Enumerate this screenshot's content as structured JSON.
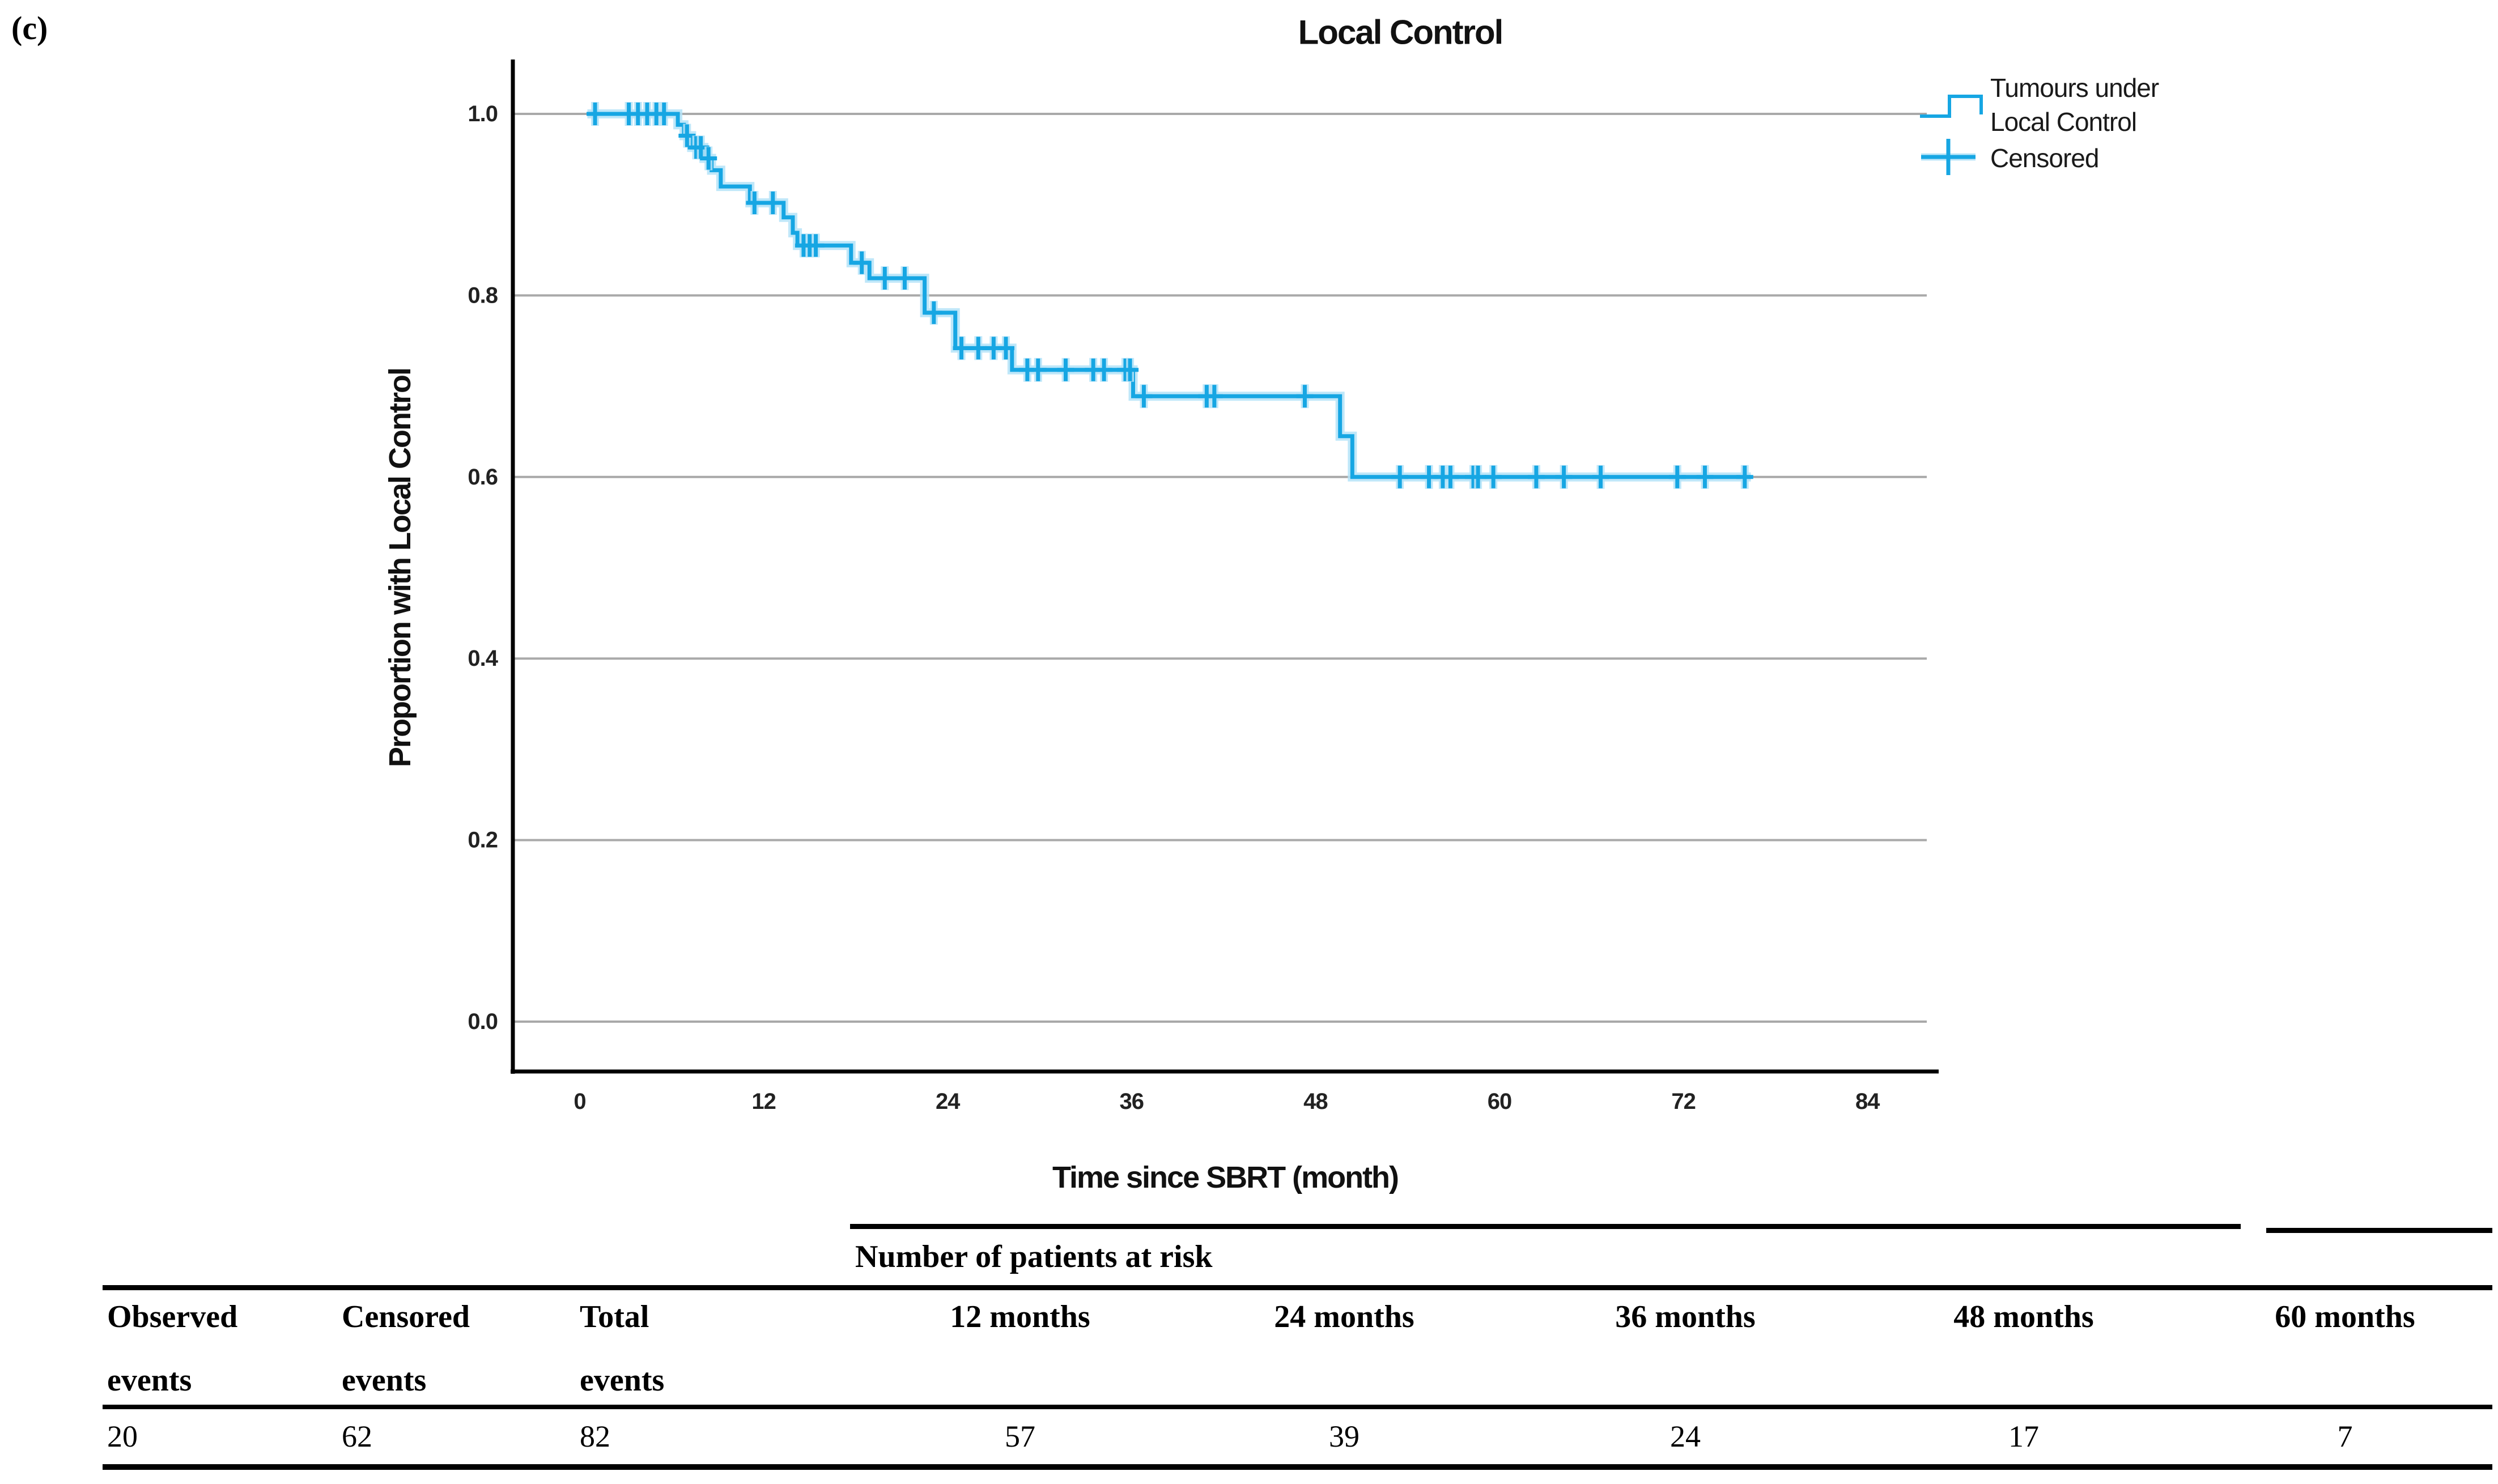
{
  "figure_label": "(c)",
  "chart": {
    "title": "Local Control",
    "x_label": "Time since SBRT (month)",
    "y_label": "Proportion with Local Control",
    "legend": {
      "series_line1": "Tumours under",
      "series_line2": "Local Control",
      "censored": "Censored"
    },
    "colors": {
      "curve": "#16A6E3",
      "curve_halo": "#B4E3F8",
      "grid": "#A9A9A9",
      "axis": "#000000"
    }
  },
  "chart_data": {
    "type": "line",
    "subtype": "kaplan-meier-step",
    "title": "Local Control",
    "xlabel": "Time since SBRT (month)",
    "ylabel": "Proportion with Local Control",
    "xlim": [
      0,
      88
    ],
    "ylim": [
      0.0,
      1.0
    ],
    "x_ticks": [
      0,
      12,
      24,
      36,
      48,
      60,
      72,
      84
    ],
    "y_ticks": [
      "1.0",
      "0.8",
      "0.6",
      "0.4",
      "0.2",
      "0.0"
    ],
    "grid": "horizontal",
    "legend_position": "top-right",
    "series": [
      {
        "name": "Tumours under Local Control",
        "start_time": 0.5,
        "end_time": 76.4,
        "steps": [
          [
            0.5,
            1.0
          ],
          [
            6.4,
            0.988
          ],
          [
            6.8,
            0.976
          ],
          [
            7.3,
            0.963
          ],
          [
            8.1,
            0.951
          ],
          [
            8.6,
            0.938
          ],
          [
            9.2,
            0.92
          ],
          [
            11.1,
            0.902
          ],
          [
            13.3,
            0.886
          ],
          [
            13.9,
            0.869
          ],
          [
            14.2,
            0.855
          ],
          [
            17.7,
            0.836
          ],
          [
            18.9,
            0.819
          ],
          [
            22.5,
            0.781
          ],
          [
            24.5,
            0.742
          ],
          [
            28.2,
            0.718
          ],
          [
            36.1,
            0.689
          ],
          [
            49.6,
            0.645
          ],
          [
            50.4,
            0.6
          ]
        ]
      }
    ],
    "censored_points": [
      [
        1.0,
        1.0
      ],
      [
        3.2,
        1.0
      ],
      [
        3.8,
        1.0
      ],
      [
        4.4,
        1.0
      ],
      [
        5.0,
        1.0
      ],
      [
        5.5,
        1.0
      ],
      [
        7.0,
        0.976
      ],
      [
        7.6,
        0.963
      ],
      [
        7.9,
        0.963
      ],
      [
        8.4,
        0.951
      ],
      [
        11.4,
        0.902
      ],
      [
        12.6,
        0.902
      ],
      [
        14.6,
        0.855
      ],
      [
        15.0,
        0.855
      ],
      [
        15.4,
        0.855
      ],
      [
        18.4,
        0.836
      ],
      [
        19.9,
        0.819
      ],
      [
        21.2,
        0.819
      ],
      [
        23.1,
        0.781
      ],
      [
        24.9,
        0.742
      ],
      [
        26.0,
        0.742
      ],
      [
        27.0,
        0.742
      ],
      [
        27.8,
        0.742
      ],
      [
        29.2,
        0.718
      ],
      [
        29.9,
        0.718
      ],
      [
        31.7,
        0.718
      ],
      [
        33.5,
        0.718
      ],
      [
        34.2,
        0.718
      ],
      [
        35.6,
        0.718
      ],
      [
        35.9,
        0.718
      ],
      [
        36.8,
        0.689
      ],
      [
        40.9,
        0.689
      ],
      [
        41.4,
        0.689
      ],
      [
        47.3,
        0.689
      ],
      [
        53.5,
        0.6
      ],
      [
        55.4,
        0.6
      ],
      [
        56.3,
        0.6
      ],
      [
        56.8,
        0.6
      ],
      [
        58.3,
        0.6
      ],
      [
        58.6,
        0.6
      ],
      [
        59.6,
        0.6
      ],
      [
        62.4,
        0.6
      ],
      [
        64.2,
        0.6
      ],
      [
        66.6,
        0.6
      ],
      [
        71.6,
        0.6
      ],
      [
        73.4,
        0.6
      ],
      [
        76.0,
        0.6
      ]
    ],
    "at_risk": {
      "times_months": [
        12,
        24,
        36,
        48,
        60
      ],
      "counts": [
        57,
        39,
        24,
        17,
        7
      ]
    },
    "summary": {
      "observed_events": 20,
      "censored_events": 62,
      "total_events": 82
    }
  },
  "table": {
    "risk_header": "Number of patients at risk",
    "summary_columns": [
      {
        "header_line1": "Observed",
        "header_line2": "events",
        "value": "20"
      },
      {
        "header_line1": "Censored",
        "header_line2": "events",
        "value": "62"
      },
      {
        "header_line1": "Total",
        "header_line2": "events",
        "value": "82"
      }
    ],
    "risk_columns": [
      {
        "header": "12 months",
        "value": "57"
      },
      {
        "header": "24 months",
        "value": "39"
      },
      {
        "header": "36 months",
        "value": "24"
      },
      {
        "header": "48 months",
        "value": "17"
      },
      {
        "header": "60 months",
        "value": "7"
      }
    ]
  }
}
